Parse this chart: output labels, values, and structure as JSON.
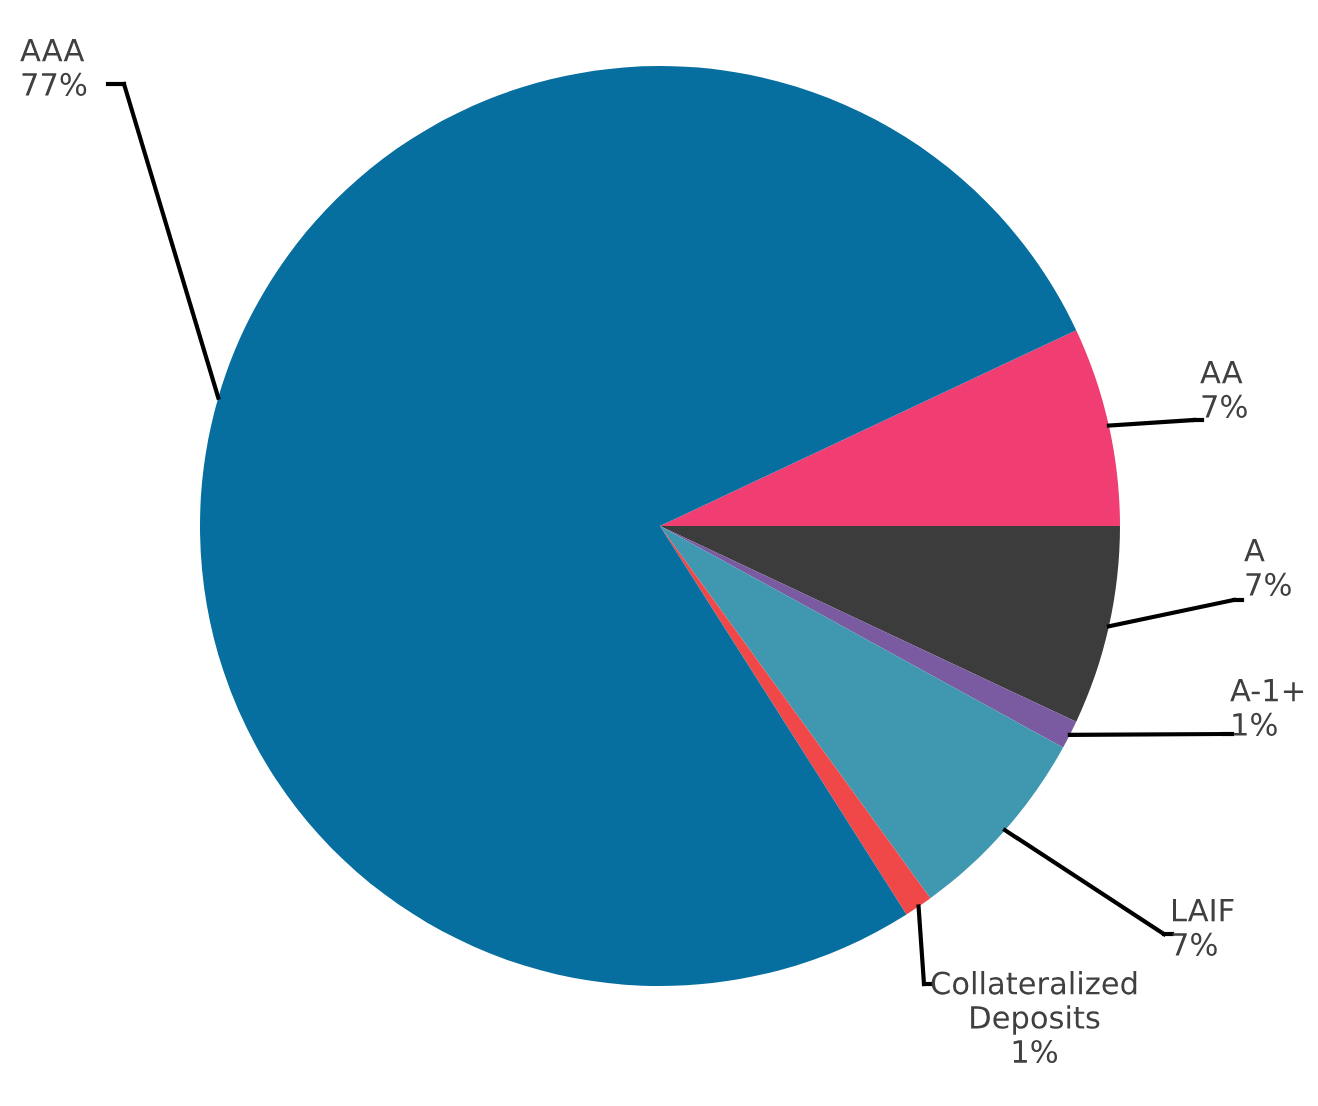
{
  "chart_data": {
    "type": "pie",
    "categories": [
      "AA",
      "A",
      "A-1+",
      "LAIF",
      "Collateralized\nDeposits",
      "AAA"
    ],
    "values": [
      7,
      7,
      1,
      7,
      1,
      77
    ],
    "value_labels": [
      "7%",
      "7%",
      "1%",
      "7%",
      "1%",
      "77%"
    ],
    "colors": [
      "#f03e72",
      "#3c3c3c",
      "#7a5aa0",
      "#3f98b0",
      "#f04848",
      "#066fa0"
    ],
    "legend": false
  }
}
